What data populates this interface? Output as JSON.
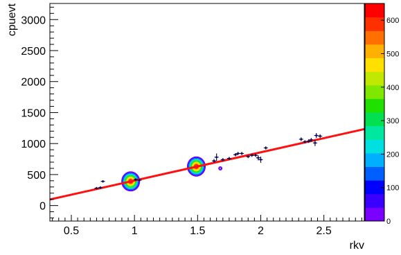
{
  "chart_data": {
    "type": "scatter",
    "title": "",
    "xlabel": "rkv",
    "ylabel": "cpuevt",
    "xlim": [
      0.33,
      2.82
    ],
    "ylim": [
      -250,
      3260
    ],
    "grid": false,
    "x_ticks": [
      "0.5",
      "1",
      "1.5",
      "2",
      "2.5"
    ],
    "x_tick_values": [
      0.5,
      1.0,
      1.5,
      2.0,
      2.5
    ],
    "y_ticks": [
      "0",
      "500",
      "1000",
      "1500",
      "2000",
      "2500",
      "3000"
    ],
    "y_tick_values": [
      0,
      500,
      1000,
      1500,
      2000,
      2500,
      3000
    ],
    "series": [
      {
        "kind": "profile-points",
        "color": "#0a0a50",
        "points": [
          {
            "x": 0.7,
            "y": 280,
            "err": 20
          },
          {
            "x": 0.73,
            "y": 290,
            "err": 20
          },
          {
            "x": 0.75,
            "y": 390,
            "err": 20
          },
          {
            "x": 1.01,
            "y": 420,
            "err": 20
          },
          {
            "x": 1.04,
            "y": 410,
            "err": 20
          },
          {
            "x": 1.63,
            "y": 720,
            "err": 30
          },
          {
            "x": 1.65,
            "y": 780,
            "err": 60
          },
          {
            "x": 1.7,
            "y": 740,
            "err": 25
          },
          {
            "x": 1.75,
            "y": 760,
            "err": 25
          },
          {
            "x": 1.8,
            "y": 820,
            "err": 25
          },
          {
            "x": 1.82,
            "y": 840,
            "err": 25
          },
          {
            "x": 1.85,
            "y": 840,
            "err": 25
          },
          {
            "x": 1.9,
            "y": 790,
            "err": 25
          },
          {
            "x": 1.93,
            "y": 810,
            "err": 25
          },
          {
            "x": 1.96,
            "y": 810,
            "err": 25
          },
          {
            "x": 1.98,
            "y": 770,
            "err": 40
          },
          {
            "x": 2.0,
            "y": 740,
            "err": 50
          },
          {
            "x": 2.04,
            "y": 930,
            "err": 25
          },
          {
            "x": 2.32,
            "y": 1070,
            "err": 30
          },
          {
            "x": 2.35,
            "y": 1030,
            "err": 25
          },
          {
            "x": 2.38,
            "y": 1040,
            "err": 30
          },
          {
            "x": 2.4,
            "y": 1060,
            "err": 30
          },
          {
            "x": 2.43,
            "y": 1010,
            "err": 50
          },
          {
            "x": 2.44,
            "y": 1130,
            "err": 40
          },
          {
            "x": 2.47,
            "y": 1120,
            "err": 30
          }
        ]
      },
      {
        "kind": "fit-line",
        "color": "#ff1010",
        "intercept": -53,
        "slope": 456,
        "x_range": [
          0.33,
          2.82
        ]
      },
      {
        "kind": "density-contours",
        "clusters": [
          {
            "x": 0.97,
            "y": 390,
            "peak": 640
          },
          {
            "x": 1.49,
            "y": 630,
            "peak": 640
          },
          {
            "x": 1.68,
            "y": 600,
            "peak": 60
          }
        ]
      }
    ],
    "colorbar": {
      "range": [
        0,
        650
      ],
      "ticks": [
        "0",
        "100",
        "200",
        "300",
        "400",
        "500",
        "600"
      ],
      "tick_values": [
        0,
        100,
        200,
        300,
        400,
        500,
        600
      ],
      "colors": [
        "#7a00ff",
        "#3a00ff",
        "#0000ff",
        "#0060ff",
        "#00b0ff",
        "#00e0e0",
        "#00e8a0",
        "#00e050",
        "#20e000",
        "#80e800",
        "#c0e800",
        "#ffe000",
        "#ffb000",
        "#ff7000",
        "#ff3000",
        "#ff0000"
      ]
    }
  }
}
